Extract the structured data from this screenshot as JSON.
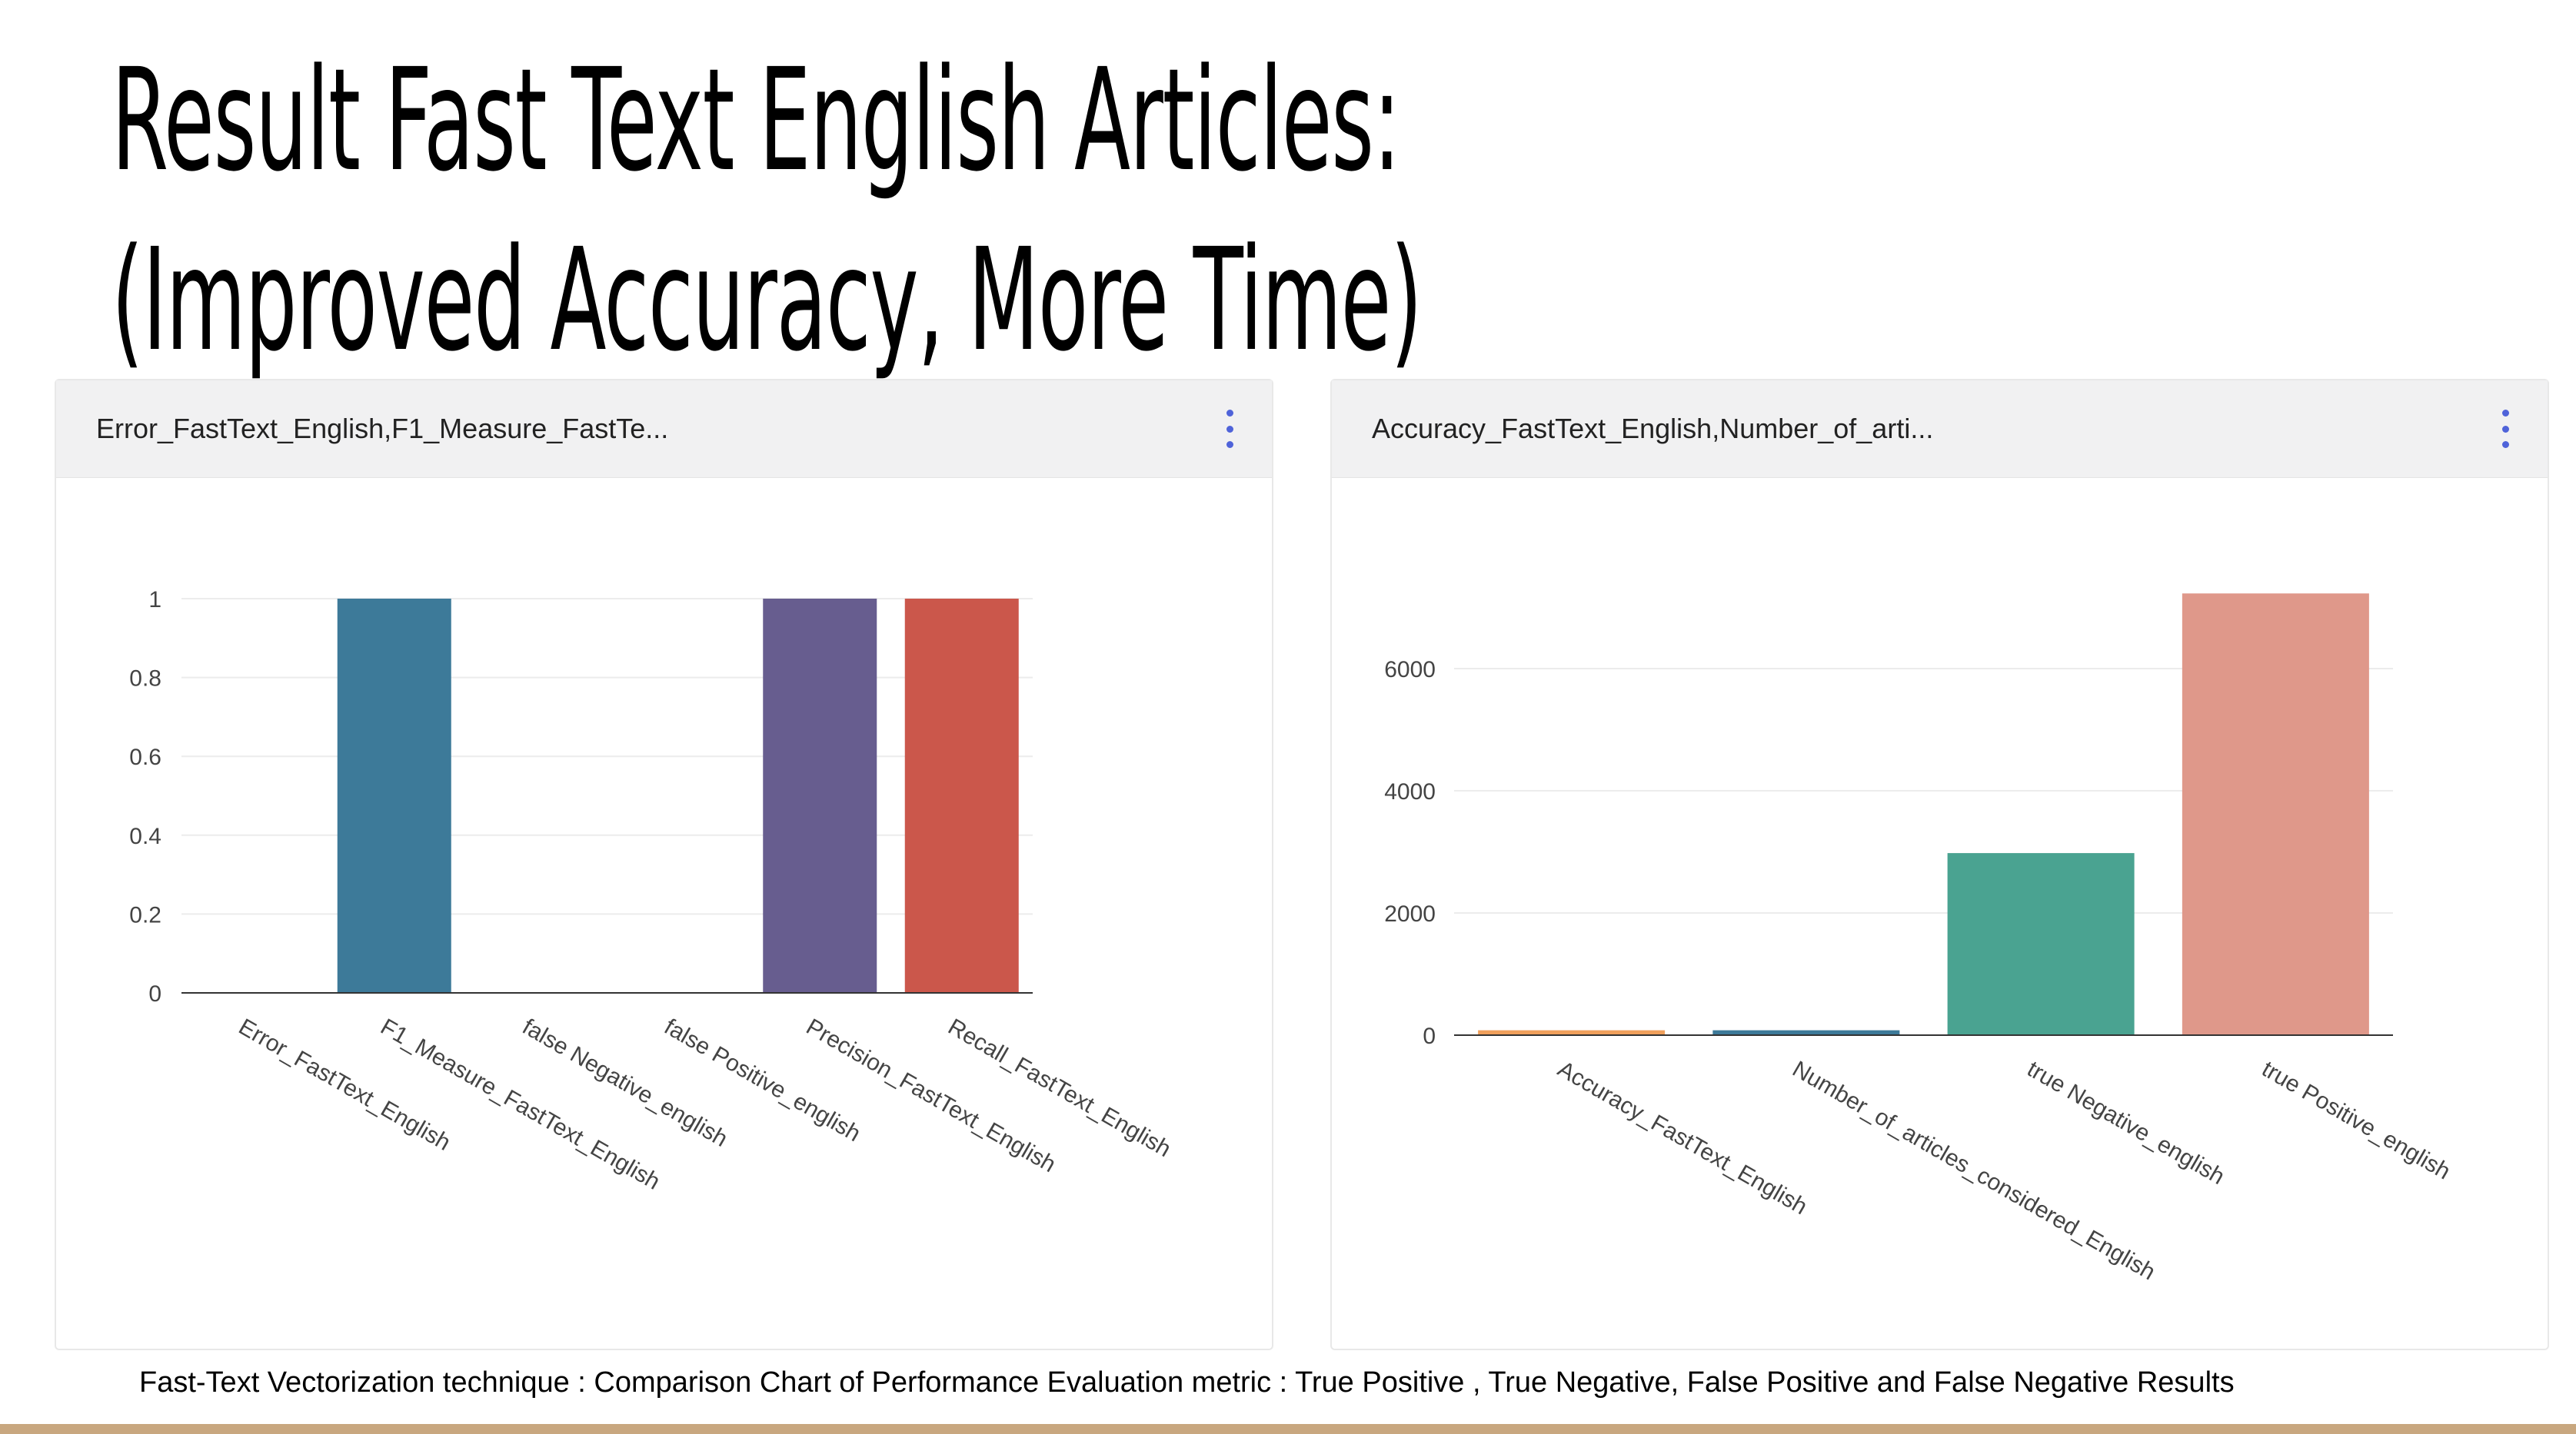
{
  "slide": {
    "title": "Result Fast Text English Articles: (Improved Accuracy, More Time)",
    "caption": "Fast-Text Vectorization technique : Comparison Chart of Performance Evaluation metric : True Positive , True Negative, False Positive and False Negative Results"
  },
  "panels": [
    {
      "title": "Error_FastText_English,F1_Measure_FastTe...",
      "menu_icon": "more-vertical-icon"
    },
    {
      "title": "Accuracy_FastText_English,Number_of_arti...",
      "menu_icon": "more-vertical-icon"
    }
  ],
  "chart_data": [
    {
      "type": "bar",
      "categories": [
        "Error_FastText_English",
        "F1_Measure_FastText_English",
        "false Negative_english",
        "false Positive_english",
        "Precision_FastText_English",
        "Recall_FastText_English"
      ],
      "values": [
        0,
        1,
        0,
        0,
        1,
        1
      ],
      "colors": [
        "#3d7a99",
        "#3d7a99",
        "#3d7a99",
        "#3d7a99",
        "#675d8f",
        "#cb574b"
      ],
      "yticks": [
        0,
        0.2,
        0.4,
        0.6,
        0.8,
        1
      ],
      "ytick_labels": [
        "0",
        "0.2",
        "0.4",
        "0.6",
        "0.8",
        "1"
      ],
      "ylim": [
        0,
        1
      ],
      "grid": true
    },
    {
      "type": "bar",
      "categories": [
        "Accuracy_FastText_English",
        "Number_of_articles_considered_English",
        "true Negative_english",
        "true Positive_english"
      ],
      "values": [
        80,
        80,
        2980,
        7230
      ],
      "colors": [
        "#f0a05c",
        "#3d7a99",
        "#4aa391",
        "#df988a"
      ],
      "yticks": [
        0,
        2000,
        4000,
        6000
      ],
      "ytick_labels": [
        "0",
        "2000",
        "4000",
        "6000"
      ],
      "ylim": [
        0,
        7400
      ],
      "grid": true
    }
  ]
}
